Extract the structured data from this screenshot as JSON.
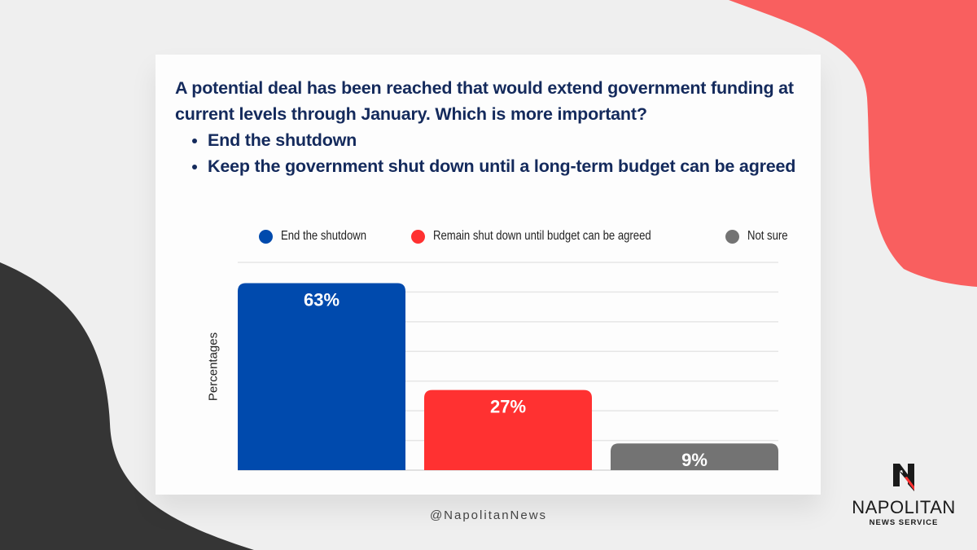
{
  "question": {
    "text": "A potential deal has been reached that would extend government funding at current levels through January. Which is more important?",
    "options": [
      "End the shutdown",
      "Keep the government shut down until a long-term budget can be agreed"
    ]
  },
  "colors": {
    "background": "#efefef",
    "blob_red": "#f95f5f",
    "blob_dark": "#353535",
    "title_text": "#142a5c"
  },
  "chart_data": {
    "type": "bar",
    "title": "",
    "xlabel": "",
    "ylabel": "Percentages",
    "ylim": [
      0,
      70
    ],
    "grid": true,
    "legend_position": "top",
    "categories": [
      "End the shutdown",
      "Remain shut down until budget can be agreed",
      "Not sure"
    ],
    "values": [
      63,
      27,
      9
    ],
    "data_labels": [
      "63%",
      "27%",
      "9%"
    ],
    "colors": [
      "#004aad",
      "#ff3131",
      "#737373"
    ],
    "legend": [
      {
        "label": "End the shutdown",
        "color": "#004aad"
      },
      {
        "label": "Remain shut down until budget can be agreed",
        "color": "#ff3131"
      },
      {
        "label": "Not sure",
        "color": "#737373"
      }
    ]
  },
  "footer": {
    "handle": "@NapolitanNews",
    "logo_name": "NAPOLITAN",
    "logo_sub": "NEWS SERVICE"
  }
}
